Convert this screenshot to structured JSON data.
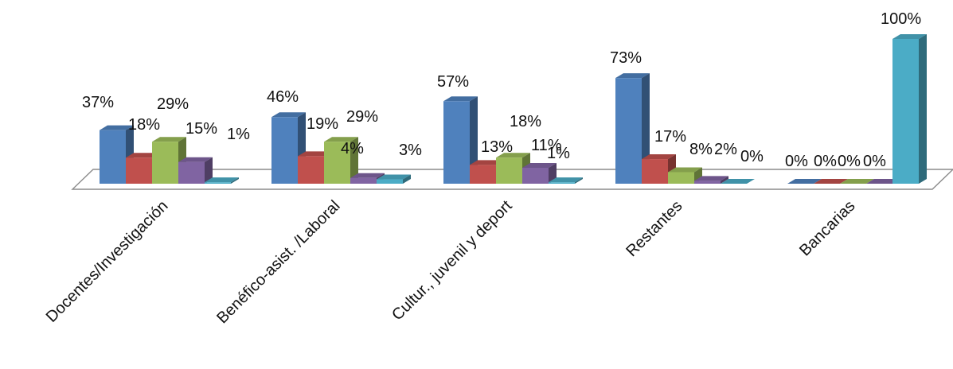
{
  "chart_data": {
    "type": "bar",
    "categories": [
      "Docentes/Investigación",
      "Benéfico-asist. /Laboral",
      "Cultur., juvenil y deport",
      "Restantes",
      "Bancarias"
    ],
    "series": [
      {
        "values": [
          37,
          46,
          57,
          73,
          0
        ],
        "labels": [
          "37%",
          "46%",
          "57%",
          "73%",
          "0%"
        ],
        "color": "#4F81BD"
      },
      {
        "values": [
          18,
          19,
          13,
          17,
          0
        ],
        "labels": [
          "18%",
          "19%",
          "13%",
          "17%",
          "0%"
        ],
        "color": "#C0504D"
      },
      {
        "values": [
          29,
          29,
          18,
          8,
          0
        ],
        "labels": [
          "29%",
          "29%",
          "18%",
          "8%",
          "0%"
        ],
        "color": "#9BBB59"
      },
      {
        "values": [
          15,
          4,
          11,
          2,
          0
        ],
        "labels": [
          "15%",
          "4%",
          "11%",
          "2%",
          "0%"
        ],
        "color": "#8064A2"
      },
      {
        "values": [
          1,
          3,
          1,
          0,
          100
        ],
        "labels": [
          "1%",
          "3%",
          "1%",
          "0%",
          "100%"
        ],
        "color": "#4BACC6"
      }
    ],
    "ylim": [
      0,
      100
    ],
    "grid": false,
    "legend": "none",
    "style": "3d-clustered-column"
  }
}
